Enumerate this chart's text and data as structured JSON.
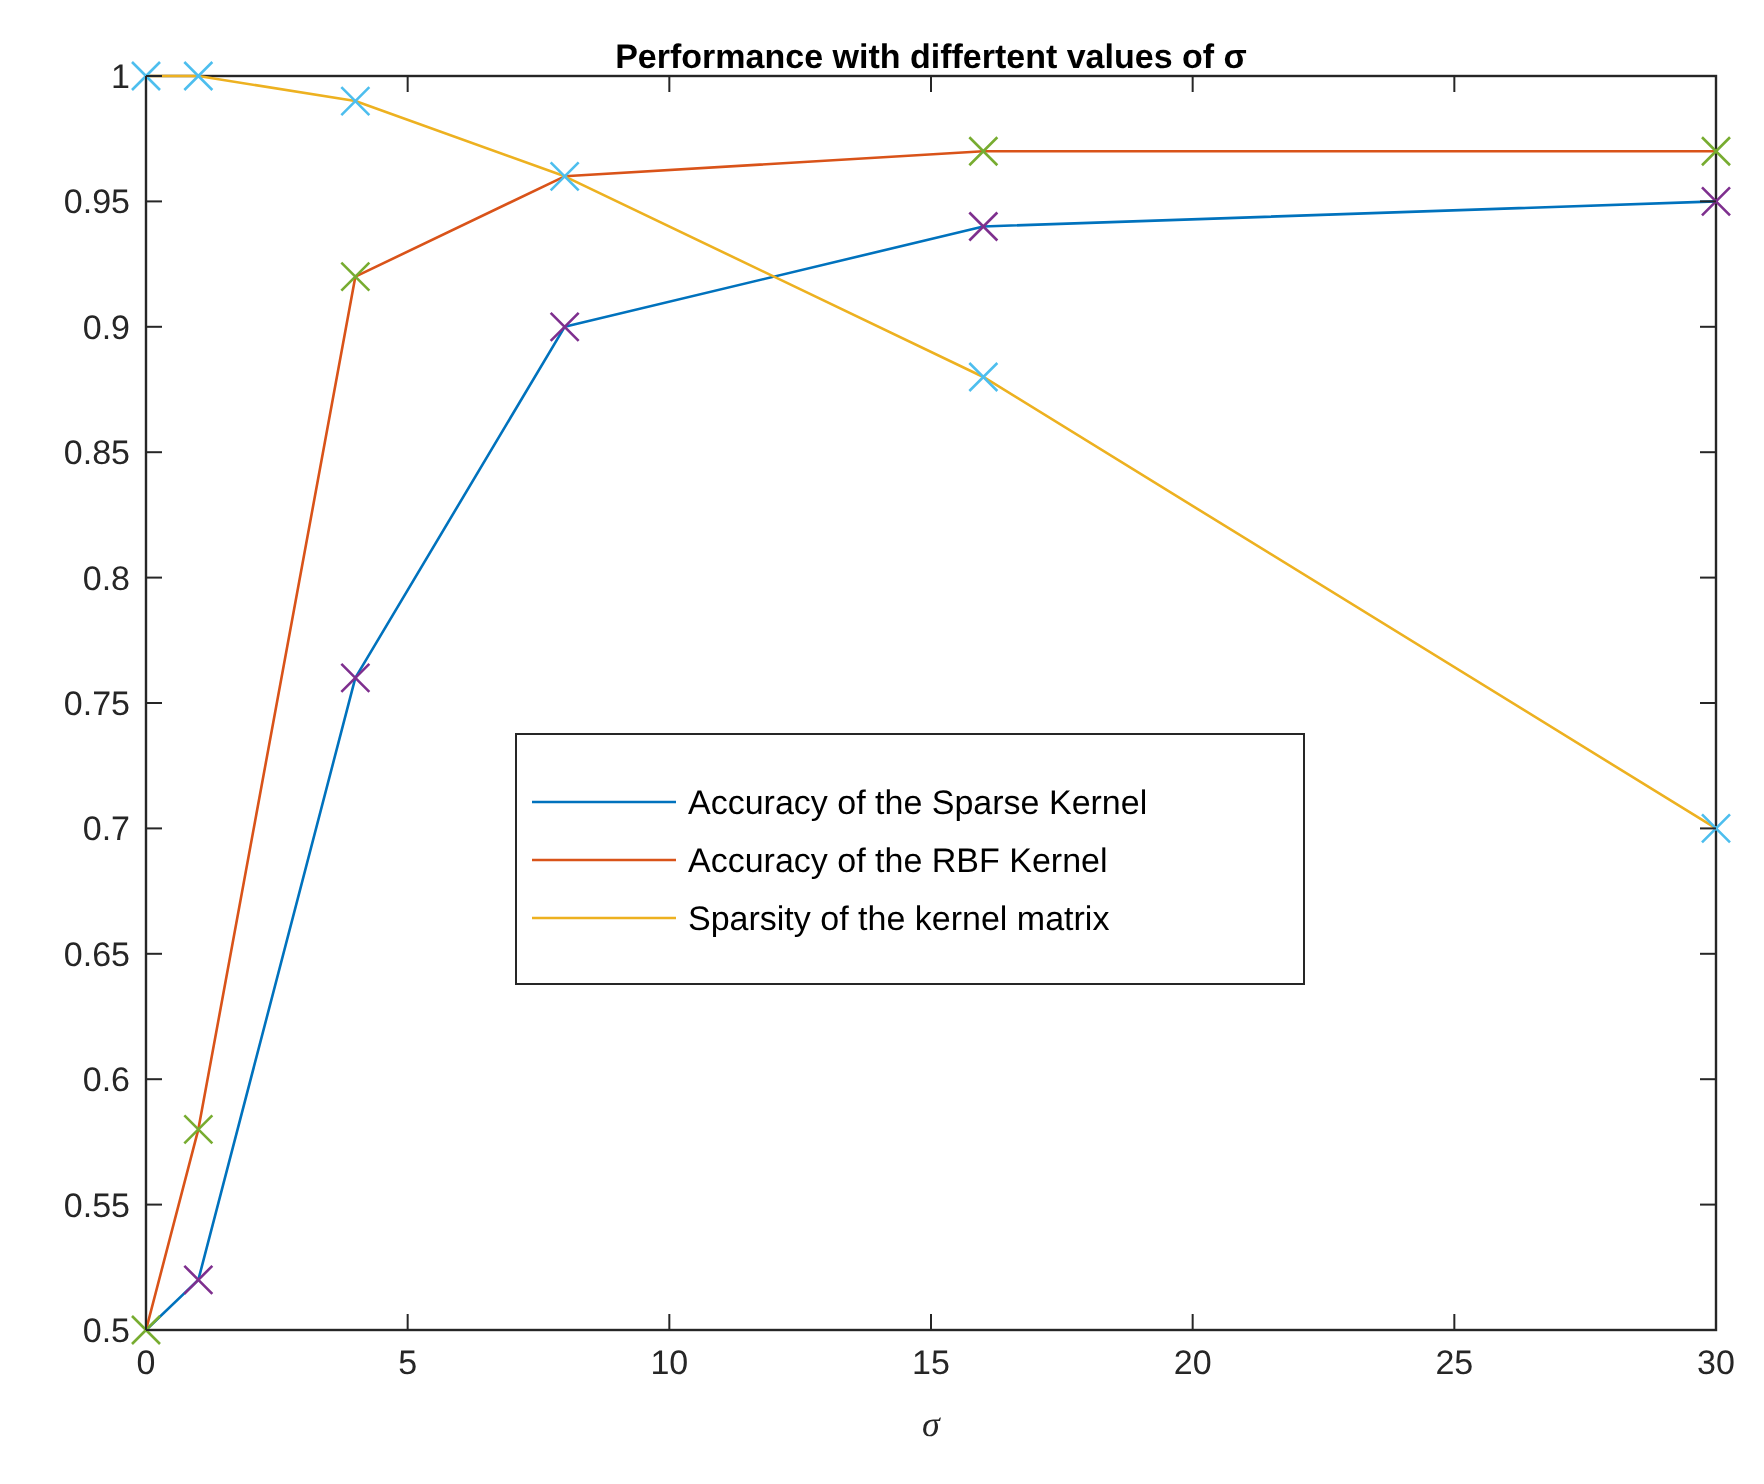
{
  "chart_data": {
    "type": "line",
    "title": "Performance with differtent values of σ",
    "xlabel": "σ",
    "x": [
      0,
      1,
      4,
      8,
      16,
      30
    ],
    "xlim": [
      0,
      30
    ],
    "xticks": [
      0,
      5,
      10,
      15,
      20,
      25,
      30
    ],
    "ylim": [
      0.5,
      1
    ],
    "yticks": [
      0.5,
      0.55,
      0.6,
      0.65,
      0.7,
      0.75,
      0.8,
      0.85,
      0.9,
      0.95,
      1
    ],
    "grid": false,
    "legend": "center",
    "marker": "none",
    "line_style": "solid",
    "series": [
      {
        "name": "Accuracy of the Sparse Kernel",
        "color": "#0072bd",
        "values": [
          0.5,
          0.52,
          0.76,
          0.9,
          0.94,
          0.95
        ]
      },
      {
        "name": "Accuracy of the RBF Kernel",
        "color": "#d95319",
        "values": [
          0.5,
          0.58,
          0.92,
          0.96,
          0.97,
          0.97
        ]
      },
      {
        "name": "Sparsity of the kernel matrix",
        "color": "#edb120",
        "values": [
          1,
          1,
          0.99,
          0.96,
          0.88,
          0.7
        ]
      },
      {
        "type": "scatter",
        "marker": "cross",
        "color": "#7e2f8e",
        "values": [
          null,
          0.52,
          0.76,
          0.9,
          0.94,
          0.95
        ]
      },
      {
        "type": "scatter",
        "marker": "cross",
        "color": "#77ac30",
        "values": [
          0.5,
          0.58,
          0.92,
          null,
          0.97,
          0.97
        ]
      },
      {
        "type": "scatter",
        "marker": "cross",
        "color": "#4dbeee",
        "values": [
          1,
          1,
          0.99,
          0.96,
          0.88,
          0.7
        ]
      }
    ]
  }
}
